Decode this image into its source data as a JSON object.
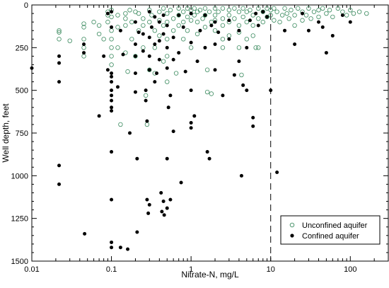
{
  "chart_data": {
    "type": "scatter",
    "x_scale": "log",
    "xlim": [
      0.01,
      300
    ],
    "ylim": [
      1500,
      0
    ],
    "y_inverted": true,
    "xlabel": "Nitrate-N, mg/L",
    "ylabel": "Well depth, feet",
    "x_ticks": [
      "0.01",
      "0.1",
      "1",
      "10",
      "100"
    ],
    "x_tick_values": [
      0.01,
      0.1,
      1,
      10,
      100
    ],
    "y_ticks": [
      "0",
      "250",
      "500",
      "750",
      "1000",
      "1250",
      "1500"
    ],
    "y_tick_values": [
      0,
      250,
      500,
      750,
      1000,
      1250,
      1500
    ],
    "reference_line": {
      "x": 10,
      "style": "dashed"
    },
    "legend_position": "bottom-right",
    "grid": false,
    "colors": {
      "unconfined": "#3a8a5e",
      "confined": "#000000"
    },
    "series": [
      {
        "name": "Unconfined aquifer",
        "marker": "open-circle",
        "points": [
          [
            0.022,
            150
          ],
          [
            0.022,
            160
          ],
          [
            0.022,
            200
          ],
          [
            0.03,
            210
          ],
          [
            0.045,
            110
          ],
          [
            0.045,
            130
          ],
          [
            0.045,
            200
          ],
          [
            0.045,
            250
          ],
          [
            0.045,
            300
          ],
          [
            0.06,
            100
          ],
          [
            0.07,
            120
          ],
          [
            0.07,
            170
          ],
          [
            0.08,
            200
          ],
          [
            0.09,
            40
          ],
          [
            0.09,
            60
          ],
          [
            0.09,
            100
          ],
          [
            0.1,
            30
          ],
          [
            0.1,
            70
          ],
          [
            0.1,
            150
          ],
          [
            0.1,
            200
          ],
          [
            0.1,
            250
          ],
          [
            0.1,
            300
          ],
          [
            0.1,
            350
          ],
          [
            0.12,
            60
          ],
          [
            0.12,
            130
          ],
          [
            0.12,
            250
          ],
          [
            0.13,
            700
          ],
          [
            0.15,
            50
          ],
          [
            0.15,
            80
          ],
          [
            0.15,
            120
          ],
          [
            0.15,
            280
          ],
          [
            0.16,
            390
          ],
          [
            0.17,
            30
          ],
          [
            0.18,
            100
          ],
          [
            0.18,
            200
          ],
          [
            0.2,
            40
          ],
          [
            0.2,
            300
          ],
          [
            0.22,
            50
          ],
          [
            0.22,
            150
          ],
          [
            0.25,
            80
          ],
          [
            0.25,
            120
          ],
          [
            0.25,
            250
          ],
          [
            0.27,
            530
          ],
          [
            0.28,
            700
          ],
          [
            0.3,
            30
          ],
          [
            0.3,
            100
          ],
          [
            0.3,
            380
          ],
          [
            0.32,
            60
          ],
          [
            0.35,
            150
          ],
          [
            0.35,
            250
          ],
          [
            0.35,
            400
          ],
          [
            0.4,
            40
          ],
          [
            0.4,
            90
          ],
          [
            0.4,
            180
          ],
          [
            0.45,
            20
          ],
          [
            0.45,
            120
          ],
          [
            0.45,
            330
          ],
          [
            0.5,
            50
          ],
          [
            0.5,
            100
          ],
          [
            0.5,
            200
          ],
          [
            0.5,
            300
          ],
          [
            0.5,
            450
          ],
          [
            0.55,
            30
          ],
          [
            0.6,
            80
          ],
          [
            0.6,
            150
          ],
          [
            0.65,
            400
          ],
          [
            0.7,
            20
          ],
          [
            0.7,
            60
          ],
          [
            0.7,
            120
          ],
          [
            0.8,
            40
          ],
          [
            0.8,
            100
          ],
          [
            0.8,
            200
          ],
          [
            0.9,
            20
          ],
          [
            0.9,
            70
          ],
          [
            0.9,
            150
          ],
          [
            1,
            30
          ],
          [
            1,
            90
          ],
          [
            1,
            250
          ],
          [
            1.1,
            20
          ],
          [
            1.1,
            60
          ],
          [
            1.2,
            40
          ],
          [
            1.2,
            100
          ],
          [
            1.2,
            170
          ],
          [
            1.3,
            30
          ],
          [
            1.4,
            80
          ],
          [
            1.5,
            20
          ],
          [
            1.5,
            60
          ],
          [
            1.5,
            130
          ],
          [
            1.6,
            380
          ],
          [
            1.6,
            510
          ],
          [
            1.7,
            40
          ],
          [
            1.8,
            100
          ],
          [
            1.8,
            520
          ],
          [
            2,
            20
          ],
          [
            2,
            60
          ],
          [
            2,
            90
          ],
          [
            2,
            150
          ],
          [
            2.2,
            40
          ],
          [
            2.5,
            20
          ],
          [
            2.5,
            80
          ],
          [
            2.5,
            120
          ],
          [
            2.5,
            200
          ],
          [
            2.5,
            250
          ],
          [
            3,
            30
          ],
          [
            3,
            60
          ],
          [
            3,
            100
          ],
          [
            3,
            180
          ],
          [
            3.5,
            20
          ],
          [
            3.5,
            80
          ],
          [
            4,
            40
          ],
          [
            4,
            120
          ],
          [
            4,
            160
          ],
          [
            4,
            250
          ],
          [
            4.3,
            410
          ],
          [
            4.5,
            20
          ],
          [
            4.5,
            70
          ],
          [
            5,
            40
          ],
          [
            5,
            100
          ],
          [
            5,
            200
          ],
          [
            5.5,
            30
          ],
          [
            6,
            60
          ],
          [
            6,
            120
          ],
          [
            6,
            180
          ],
          [
            6.5,
            250
          ],
          [
            7,
            20
          ],
          [
            7,
            80
          ],
          [
            7,
            250
          ],
          [
            8,
            40
          ],
          [
            8,
            100
          ],
          [
            9,
            20
          ],
          [
            9,
            70
          ],
          [
            10,
            30
          ],
          [
            10,
            60
          ],
          [
            11,
            20
          ],
          [
            11,
            90
          ],
          [
            12,
            40
          ],
          [
            13,
            100
          ],
          [
            14,
            60
          ],
          [
            15,
            20
          ],
          [
            16,
            50
          ],
          [
            17,
            80
          ],
          [
            18,
            30
          ],
          [
            20,
            60
          ],
          [
            20,
            120
          ],
          [
            22,
            20
          ],
          [
            25,
            40
          ],
          [
            25,
            90
          ],
          [
            28,
            60
          ],
          [
            30,
            20
          ],
          [
            32,
            80
          ],
          [
            35,
            40
          ],
          [
            40,
            30
          ],
          [
            40,
            70
          ],
          [
            45,
            20
          ],
          [
            50,
            50
          ],
          [
            55,
            30
          ],
          [
            60,
            70
          ],
          [
            70,
            20
          ],
          [
            80,
            40
          ],
          [
            90,
            60
          ],
          [
            100,
            30
          ],
          [
            110,
            50
          ],
          [
            130,
            40
          ],
          [
            160,
            50
          ]
        ]
      },
      {
        "name": "Confined aquifer",
        "marker": "filled-circle",
        "points": [
          [
            0.01,
            370
          ],
          [
            0.022,
            300
          ],
          [
            0.022,
            340
          ],
          [
            0.022,
            450
          ],
          [
            0.022,
            940
          ],
          [
            0.022,
            1050
          ],
          [
            0.045,
            280
          ],
          [
            0.045,
            230
          ],
          [
            0.046,
            1340
          ],
          [
            0.07,
            650
          ],
          [
            0.08,
            300
          ],
          [
            0.09,
            50
          ],
          [
            0.09,
            380
          ],
          [
            0.1,
            40
          ],
          [
            0.1,
            130
          ],
          [
            0.1,
            400
          ],
          [
            0.1,
            420
          ],
          [
            0.1,
            450
          ],
          [
            0.1,
            500
          ],
          [
            0.1,
            530
          ],
          [
            0.1,
            560
          ],
          [
            0.1,
            600
          ],
          [
            0.1,
            620
          ],
          [
            0.1,
            860
          ],
          [
            0.1,
            1140
          ],
          [
            0.1,
            1390
          ],
          [
            0.1,
            1420
          ],
          [
            0.12,
            480
          ],
          [
            0.13,
            150
          ],
          [
            0.13,
            1420
          ],
          [
            0.14,
            290
          ],
          [
            0.16,
            1430
          ],
          [
            0.17,
            750
          ],
          [
            0.2,
            100
          ],
          [
            0.2,
            230
          ],
          [
            0.2,
            300
          ],
          [
            0.2,
            400
          ],
          [
            0.2,
            510
          ],
          [
            0.21,
            900
          ],
          [
            0.21,
            1330
          ],
          [
            0.22,
            160
          ],
          [
            0.25,
            170
          ],
          [
            0.25,
            270
          ],
          [
            0.27,
            500
          ],
          [
            0.27,
            560
          ],
          [
            0.28,
            680
          ],
          [
            0.28,
            1140
          ],
          [
            0.29,
            1220
          ],
          [
            0.3,
            40
          ],
          [
            0.3,
            190
          ],
          [
            0.3,
            300
          ],
          [
            0.3,
            380
          ],
          [
            0.3,
            1170
          ],
          [
            0.32,
            130
          ],
          [
            0.35,
            70
          ],
          [
            0.35,
            230
          ],
          [
            0.35,
            450
          ],
          [
            0.37,
            400
          ],
          [
            0.4,
            100
          ],
          [
            0.4,
            210
          ],
          [
            0.4,
            320
          ],
          [
            0.42,
            1100
          ],
          [
            0.43,
            1210
          ],
          [
            0.45,
            60
          ],
          [
            0.45,
            170
          ],
          [
            0.45,
            1150
          ],
          [
            0.46,
            1230
          ],
          [
            0.5,
            120
          ],
          [
            0.5,
            250
          ],
          [
            0.5,
            370
          ],
          [
            0.5,
            900
          ],
          [
            0.5,
            1190
          ],
          [
            0.52,
            600
          ],
          [
            0.55,
            530
          ],
          [
            0.55,
            1140
          ],
          [
            0.6,
            190
          ],
          [
            0.6,
            320
          ],
          [
            0.6,
            740
          ],
          [
            0.7,
            60
          ],
          [
            0.7,
            280
          ],
          [
            0.75,
            1040
          ],
          [
            0.8,
            130
          ],
          [
            0.85,
            390
          ],
          [
            1,
            50
          ],
          [
            1,
            220
          ],
          [
            1,
            500
          ],
          [
            1,
            720
          ],
          [
            1,
            690
          ],
          [
            1.1,
            650
          ],
          [
            1.2,
            330
          ],
          [
            1.3,
            150
          ],
          [
            1.5,
            60
          ],
          [
            1.5,
            250
          ],
          [
            1.6,
            860
          ],
          [
            1.7,
            900
          ],
          [
            1.8,
            120
          ],
          [
            2,
            100
          ],
          [
            2,
            230
          ],
          [
            2,
            380
          ],
          [
            2.2,
            160
          ],
          [
            2.5,
            530
          ],
          [
            3,
            90
          ],
          [
            3,
            200
          ],
          [
            3.5,
            410
          ],
          [
            4,
            150
          ],
          [
            4,
            330
          ],
          [
            4.3,
            1000
          ],
          [
            4.5,
            470
          ],
          [
            5,
            250
          ],
          [
            5,
            500
          ],
          [
            5.5,
            90
          ],
          [
            6,
            660
          ],
          [
            6,
            710
          ],
          [
            6.5,
            50
          ],
          [
            7,
            120
          ],
          [
            8,
            40
          ],
          [
            9,
            70
          ],
          [
            10,
            500
          ],
          [
            12,
            980
          ],
          [
            15,
            150
          ],
          [
            20,
            230
          ],
          [
            25,
            50
          ],
          [
            30,
            150
          ],
          [
            40,
            100
          ],
          [
            45,
            130
          ],
          [
            50,
            280
          ],
          [
            60,
            180
          ],
          [
            80,
            60
          ],
          [
            100,
            100
          ]
        ]
      }
    ]
  }
}
